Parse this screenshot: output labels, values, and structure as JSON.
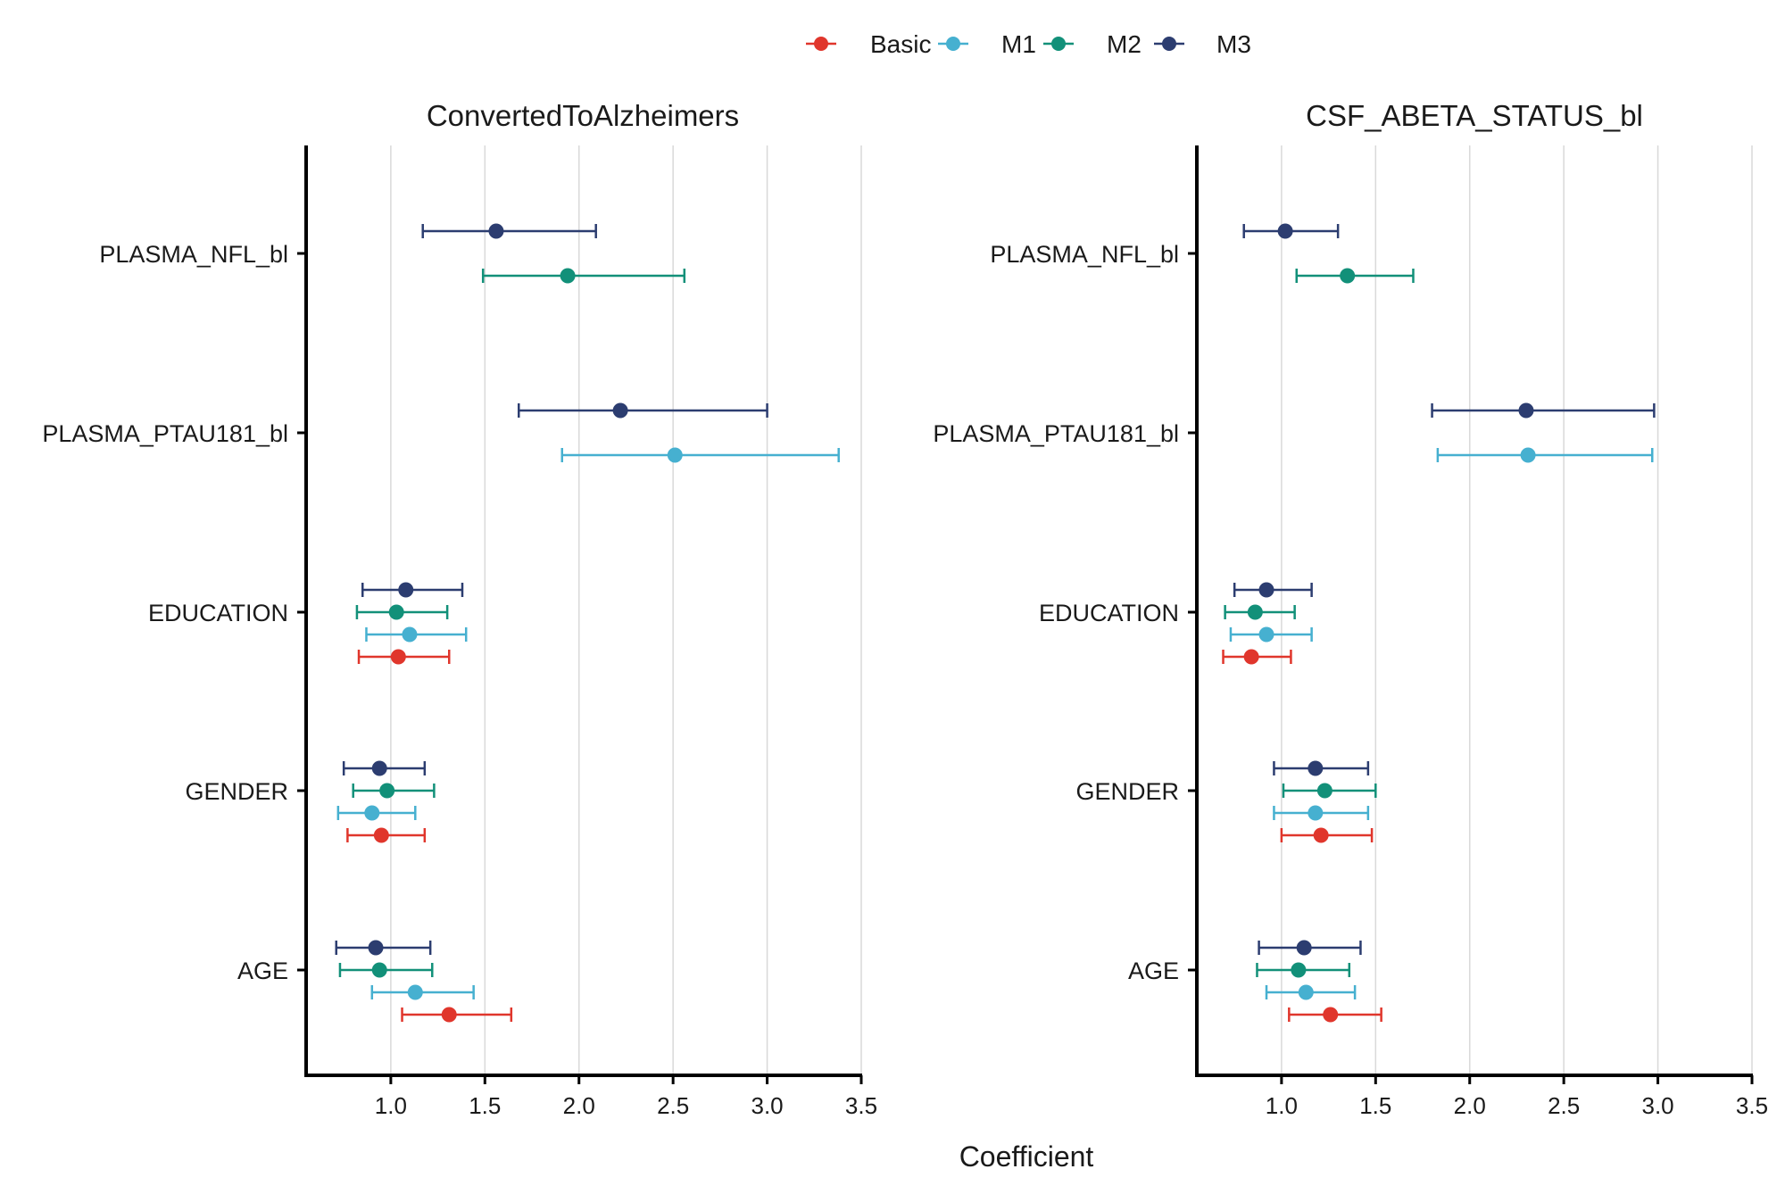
{
  "figure": {
    "xlabel": "Coefficient",
    "legend_position": "top",
    "legend": [
      {
        "name": "Basic",
        "color": "#E0362C"
      },
      {
        "name": "M1",
        "color": "#46B0D0"
      },
      {
        "name": "M2",
        "color": "#129079"
      },
      {
        "name": "M3",
        "color": "#2C3D70"
      }
    ]
  },
  "chart_data": [
    {
      "type": "forest",
      "title": "ConvertedToAlzheimers",
      "xlabel": "Coefficient",
      "xlim": [
        0.55,
        3.5
      ],
      "xticks": [
        "1.0",
        "1.5",
        "2.0",
        "2.5",
        "3.0",
        "3.5"
      ],
      "grid": "vertical",
      "categories": [
        "PLASMA_NFL_bl",
        "PLASMA_PTAU181_bl",
        "EDUCATION",
        "GENDER",
        "AGE"
      ],
      "series": [
        {
          "name": "Basic",
          "color": "#E0362C",
          "points": [
            {
              "category": "EDUCATION",
              "estimate": 1.04,
              "low": 0.83,
              "high": 1.31
            },
            {
              "category": "GENDER",
              "estimate": 0.95,
              "low": 0.77,
              "high": 1.18
            },
            {
              "category": "AGE",
              "estimate": 1.31,
              "low": 1.06,
              "high": 1.64
            }
          ]
        },
        {
          "name": "M1",
          "color": "#46B0D0",
          "points": [
            {
              "category": "PLASMA_PTAU181_bl",
              "estimate": 2.51,
              "low": 1.91,
              "high": 3.38
            },
            {
              "category": "EDUCATION",
              "estimate": 1.1,
              "low": 0.87,
              "high": 1.4
            },
            {
              "category": "GENDER",
              "estimate": 0.9,
              "low": 0.72,
              "high": 1.13
            },
            {
              "category": "AGE",
              "estimate": 1.13,
              "low": 0.9,
              "high": 1.44
            }
          ]
        },
        {
          "name": "M2",
          "color": "#129079",
          "points": [
            {
              "category": "PLASMA_NFL_bl",
              "estimate": 1.94,
              "low": 1.49,
              "high": 2.56
            },
            {
              "category": "EDUCATION",
              "estimate": 1.03,
              "low": 0.82,
              "high": 1.3
            },
            {
              "category": "GENDER",
              "estimate": 0.98,
              "low": 0.8,
              "high": 1.23
            },
            {
              "category": "AGE",
              "estimate": 0.94,
              "low": 0.73,
              "high": 1.22
            }
          ]
        },
        {
          "name": "M3",
          "color": "#2C3D70",
          "points": [
            {
              "category": "PLASMA_NFL_bl",
              "estimate": 1.56,
              "low": 1.17,
              "high": 2.09
            },
            {
              "category": "PLASMA_PTAU181_bl",
              "estimate": 2.22,
              "low": 1.68,
              "high": 3.0
            },
            {
              "category": "EDUCATION",
              "estimate": 1.08,
              "low": 0.85,
              "high": 1.38
            },
            {
              "category": "GENDER",
              "estimate": 0.94,
              "low": 0.75,
              "high": 1.18
            },
            {
              "category": "AGE",
              "estimate": 0.92,
              "low": 0.71,
              "high": 1.21
            }
          ]
        }
      ]
    },
    {
      "type": "forest",
      "title": "CSF_ABETA_STATUS_bl",
      "xlabel": "Coefficient",
      "xlim": [
        0.55,
        3.5
      ],
      "xticks": [
        "1.0",
        "1.5",
        "2.0",
        "2.5",
        "3.0",
        "3.5"
      ],
      "grid": "vertical",
      "categories": [
        "PLASMA_NFL_bl",
        "PLASMA_PTAU181_bl",
        "EDUCATION",
        "GENDER",
        "AGE"
      ],
      "series": [
        {
          "name": "Basic",
          "color": "#E0362C",
          "points": [
            {
              "category": "EDUCATION",
              "estimate": 0.84,
              "low": 0.69,
              "high": 1.05
            },
            {
              "category": "GENDER",
              "estimate": 1.21,
              "low": 1.0,
              "high": 1.48
            },
            {
              "category": "AGE",
              "estimate": 1.26,
              "low": 1.04,
              "high": 1.53
            }
          ]
        },
        {
          "name": "M1",
          "color": "#46B0D0",
          "points": [
            {
              "category": "PLASMA_PTAU181_bl",
              "estimate": 2.31,
              "low": 1.83,
              "high": 2.97
            },
            {
              "category": "EDUCATION",
              "estimate": 0.92,
              "low": 0.73,
              "high": 1.16
            },
            {
              "category": "GENDER",
              "estimate": 1.18,
              "low": 0.96,
              "high": 1.46
            },
            {
              "category": "AGE",
              "estimate": 1.13,
              "low": 0.92,
              "high": 1.39
            }
          ]
        },
        {
          "name": "M2",
          "color": "#129079",
          "points": [
            {
              "category": "PLASMA_NFL_bl",
              "estimate": 1.35,
              "low": 1.08,
              "high": 1.7
            },
            {
              "category": "EDUCATION",
              "estimate": 0.86,
              "low": 0.7,
              "high": 1.07
            },
            {
              "category": "GENDER",
              "estimate": 1.23,
              "low": 1.01,
              "high": 1.5
            },
            {
              "category": "AGE",
              "estimate": 1.09,
              "low": 0.87,
              "high": 1.36
            }
          ]
        },
        {
          "name": "M3",
          "color": "#2C3D70",
          "points": [
            {
              "category": "PLASMA_NFL_bl",
              "estimate": 1.02,
              "low": 0.8,
              "high": 1.3
            },
            {
              "category": "PLASMA_PTAU181_bl",
              "estimate": 2.3,
              "low": 1.8,
              "high": 2.98
            },
            {
              "category": "EDUCATION",
              "estimate": 0.92,
              "low": 0.75,
              "high": 1.16
            },
            {
              "category": "GENDER",
              "estimate": 1.18,
              "low": 0.96,
              "high": 1.46
            },
            {
              "category": "AGE",
              "estimate": 1.12,
              "low": 0.88,
              "high": 1.42
            }
          ]
        }
      ]
    }
  ]
}
